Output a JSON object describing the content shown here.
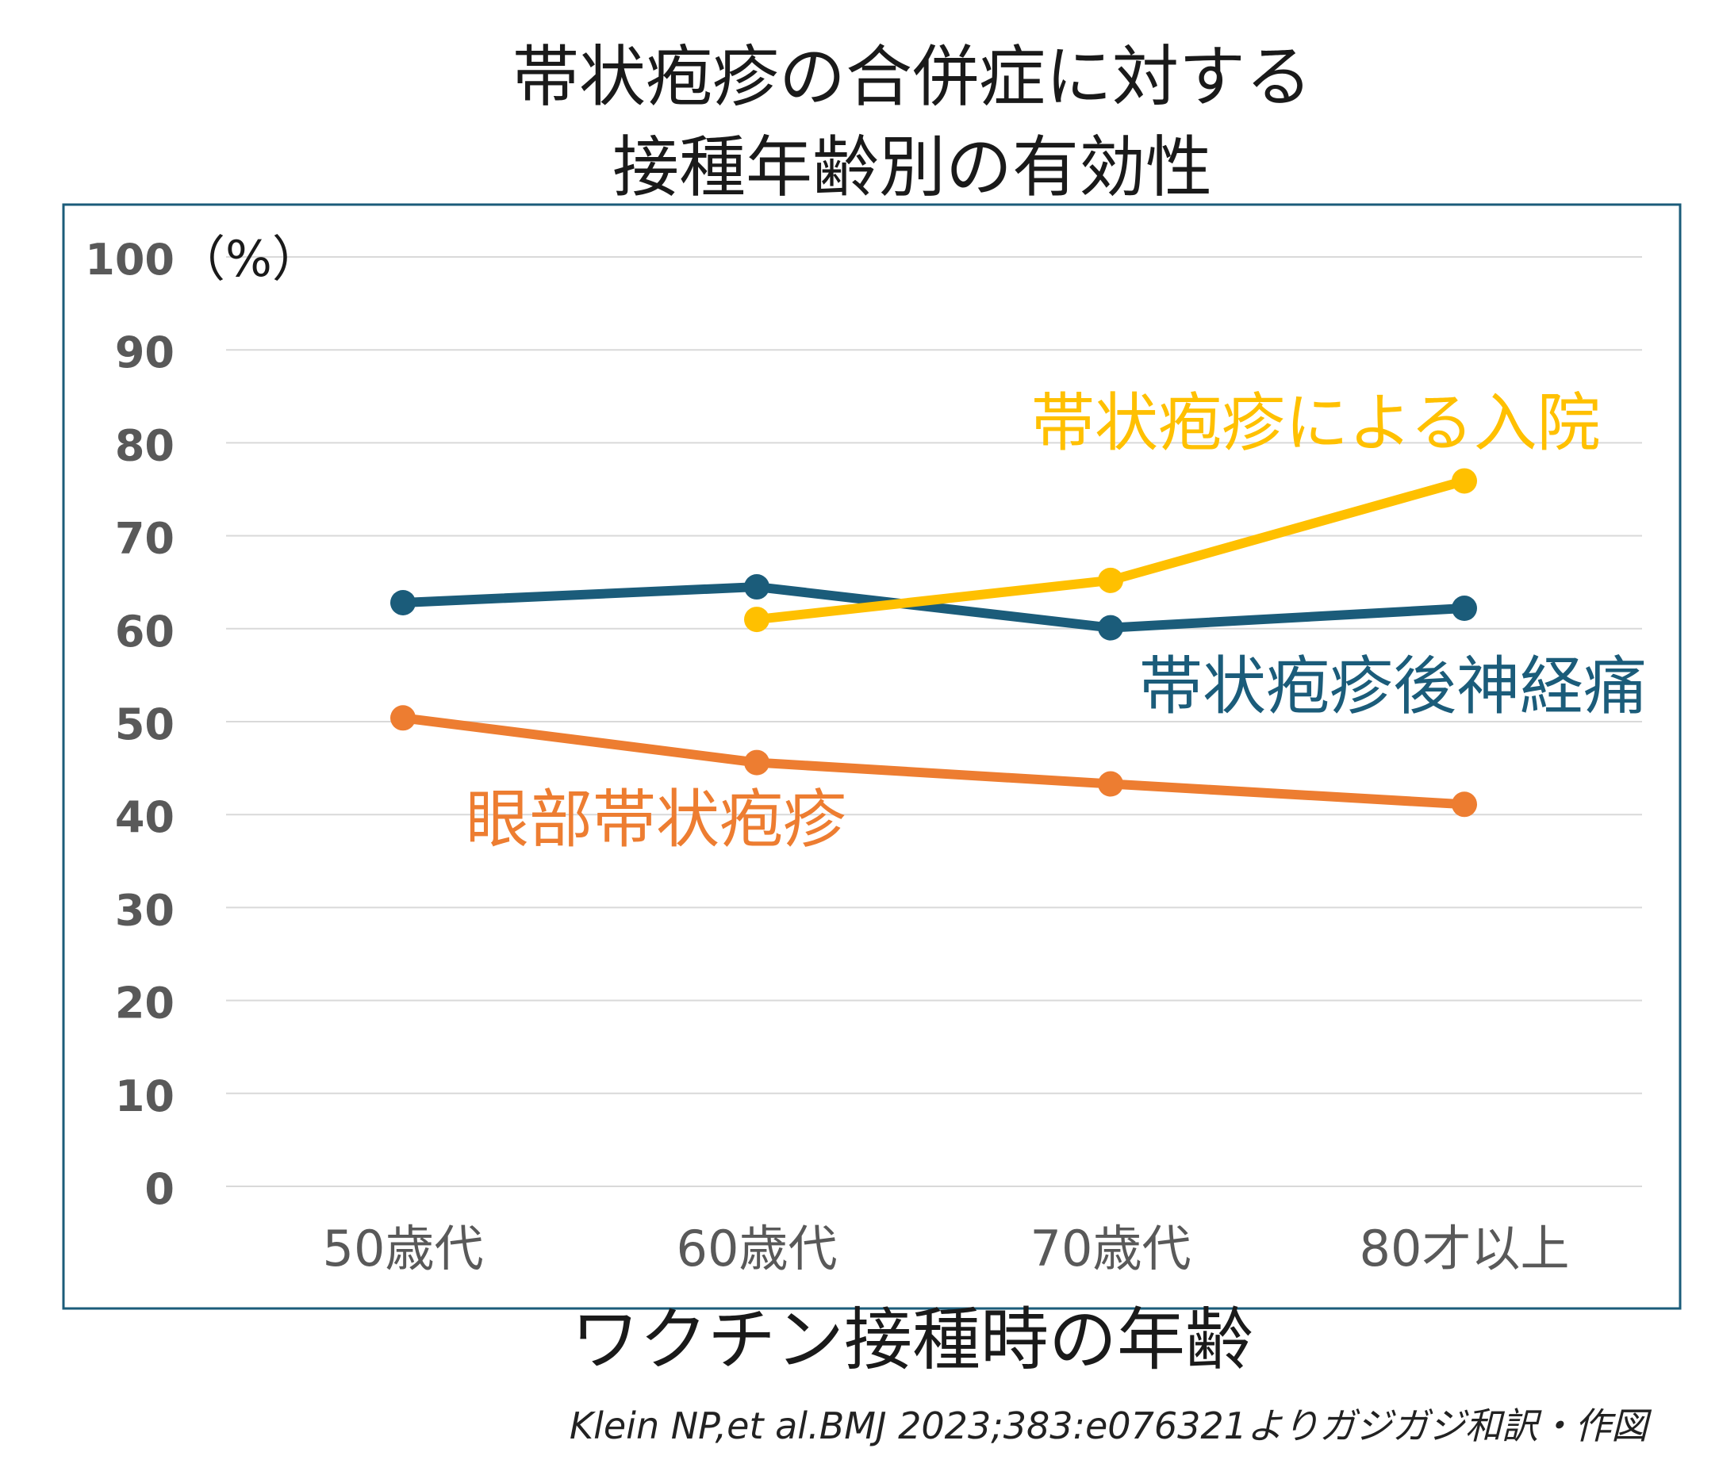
{
  "title_lines": [
    "帯状疱疹の合併症に対する",
    "接種年齢別の有効性"
  ],
  "source": "Klein NP,et al.BMJ 2023;383:e076321よりガジガジ和訳・作図",
  "colors": {
    "frame": "#1b5c7a",
    "grid": "#d9d9d9",
    "tick_text": "#595959"
  },
  "chart_data": {
    "type": "line",
    "xlabel": "ワクチン接種時の年齢",
    "ylabel": "",
    "y_unit": "（%）",
    "categories": [
      "50歳代",
      "60歳代",
      "70歳代",
      "80才以上"
    ],
    "ylim": [
      0,
      100
    ],
    "yticks": [
      0,
      10,
      20,
      30,
      40,
      50,
      60,
      70,
      80,
      90,
      100
    ],
    "grid": true,
    "legend": "inline labels",
    "series": [
      {
        "name": "帯状疱疹後神経痛",
        "color": "#1b5c7a",
        "values": [
          62.8,
          64.5,
          60.1,
          62.2
        ]
      },
      {
        "name": "帯状疱疹による入院",
        "color": "#ffc000",
        "values": [
          null,
          61.0,
          65.2,
          75.9
        ]
      },
      {
        "name": "眼部帯状疱疹",
        "color": "#ed7d31",
        "values": [
          50.4,
          45.6,
          43.3,
          41.1
        ]
      }
    ]
  }
}
